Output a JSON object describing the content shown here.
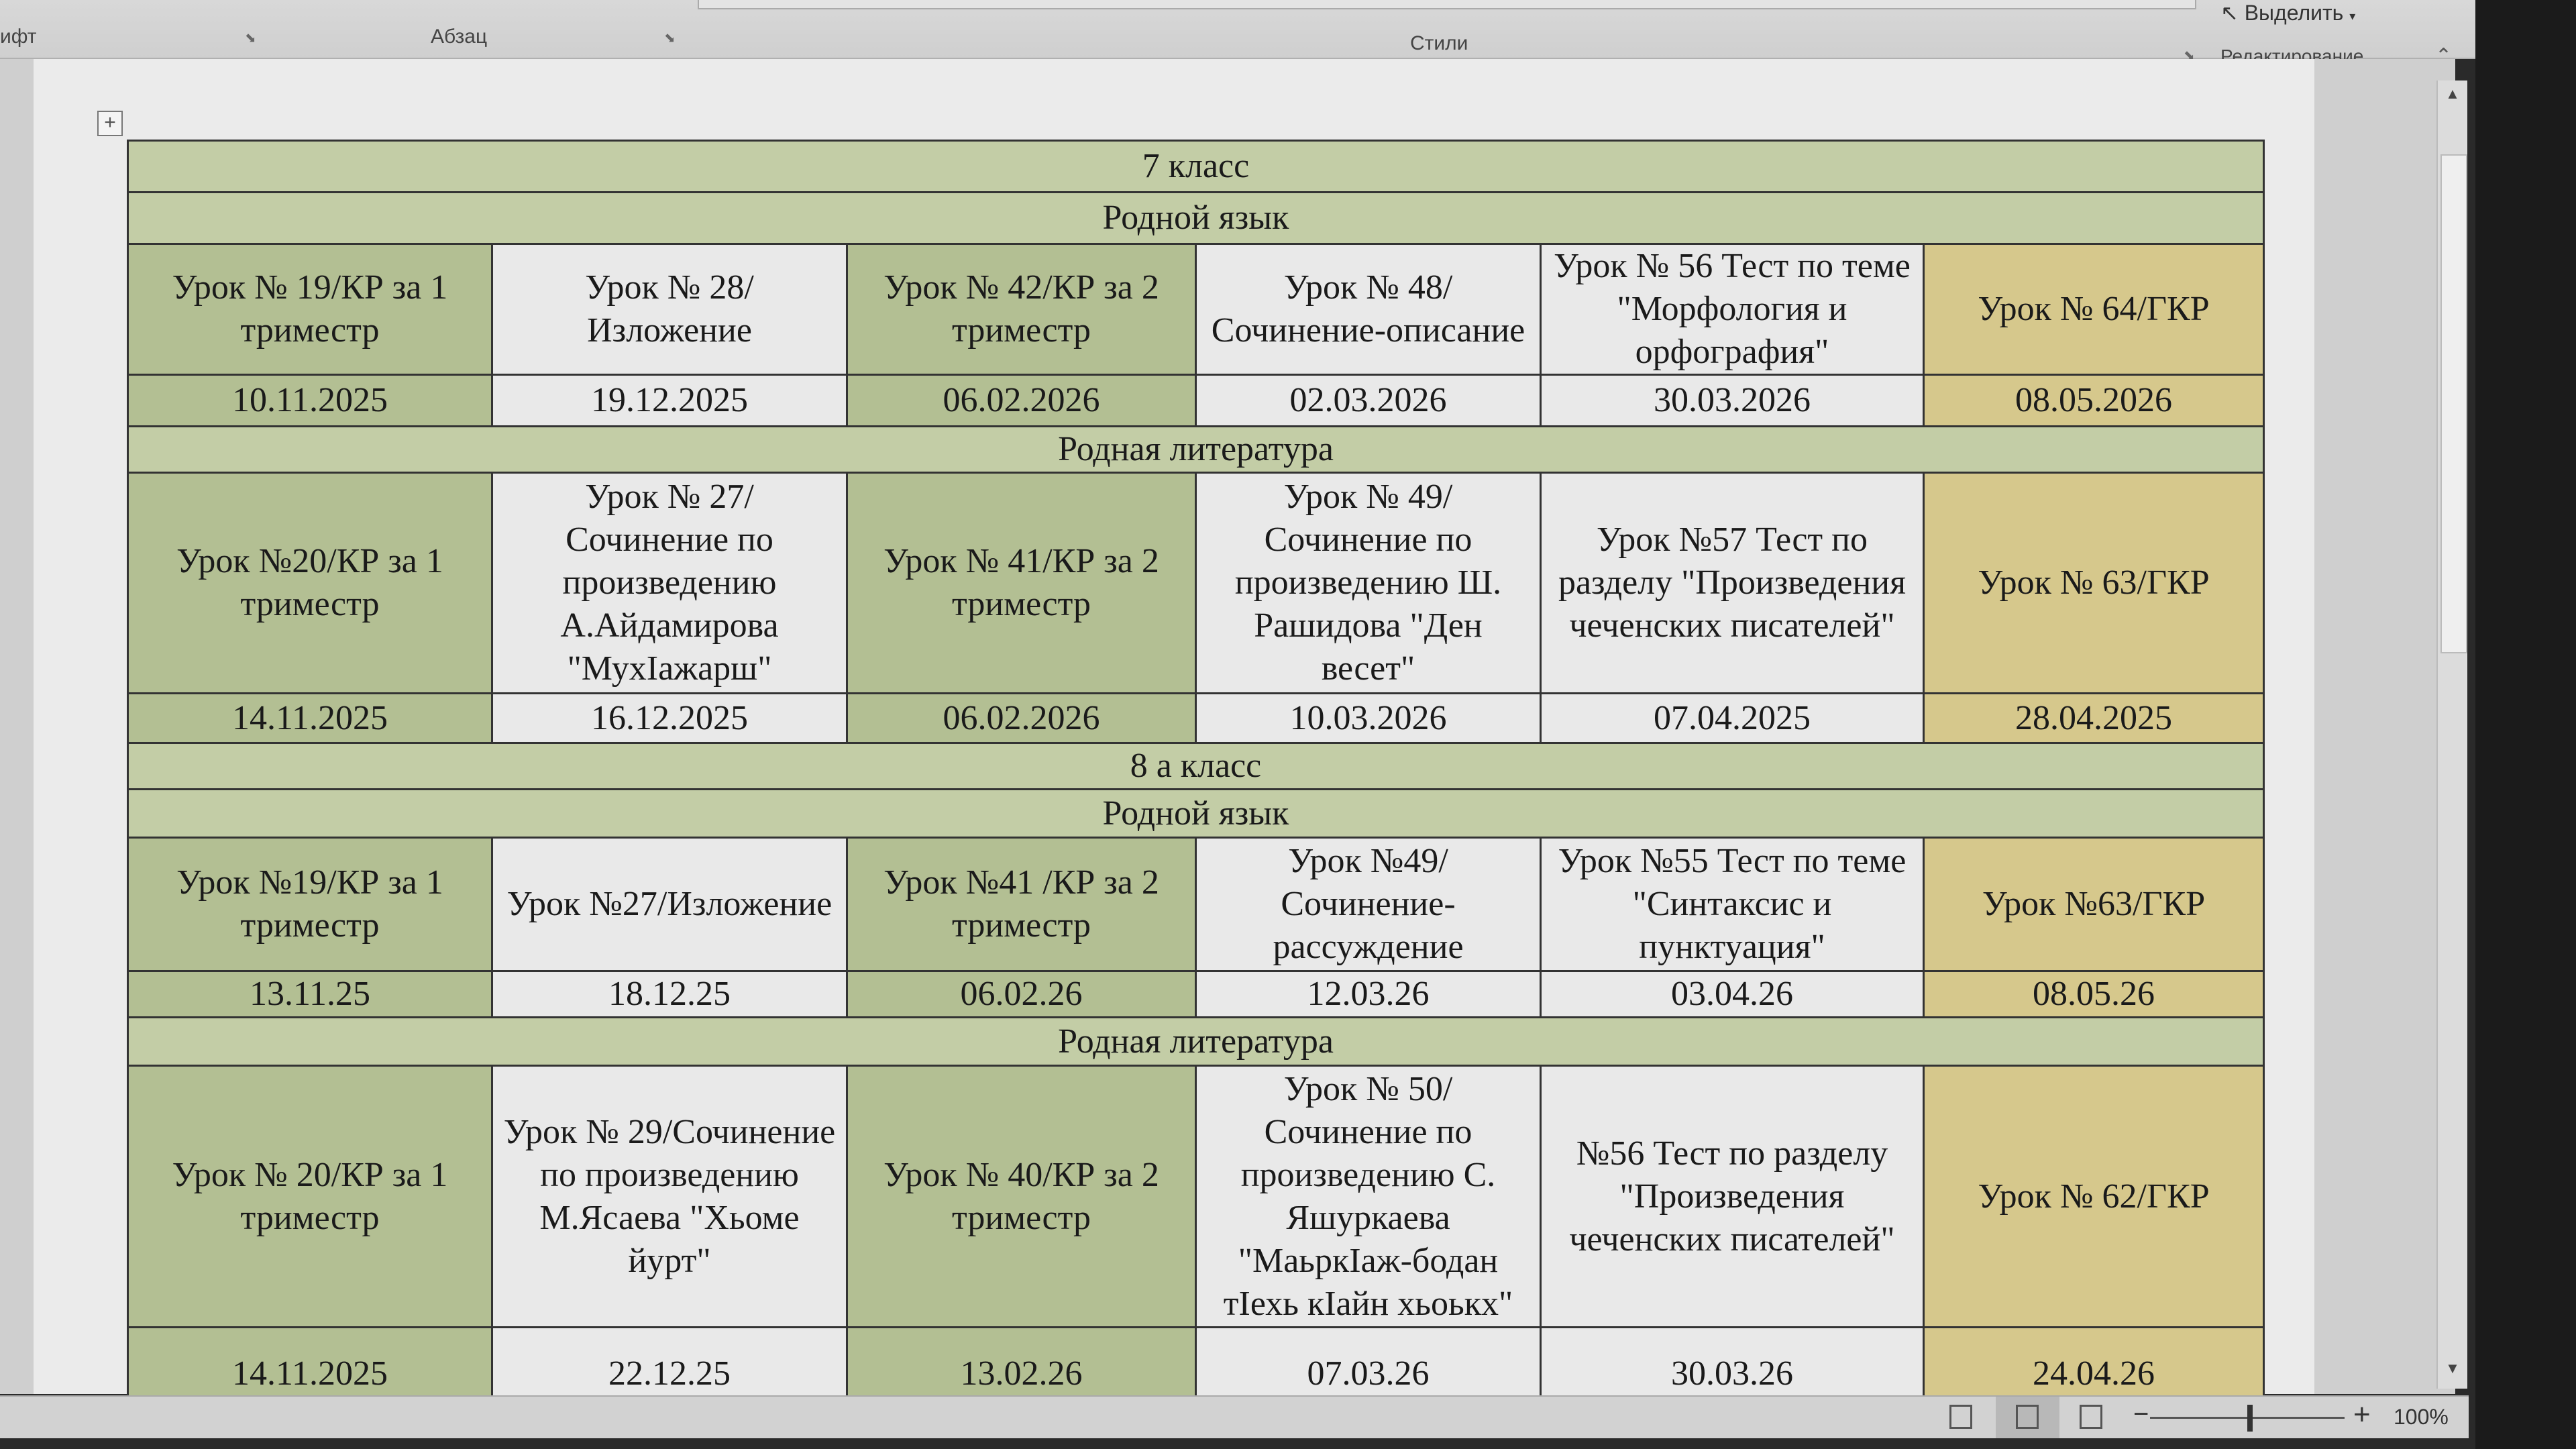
{
  "ribbon": {
    "groups": {
      "font": "ифт",
      "paragraph": "Абзац",
      "styles": "Стили",
      "editing": "Редактирование"
    },
    "select_button": "Выделить",
    "select_icon": "cursor-arrow-icon"
  },
  "colors": {
    "header_green": "#c3cda6",
    "olive": "#b3bf93",
    "light": "#e9e9e9",
    "tan": "#d6c88c"
  },
  "sections": [
    {
      "class": "7 класс",
      "subjects": [
        {
          "name": "Родной язык",
          "lessons": [
            "Урок № 19/КР за 1 триместр",
            "Урок № 28/ Изложение",
            "Урок № 42/КР за 2 триместр",
            "Урок № 48/ Сочинение-описание",
            "Урок № 56 Тест по теме \"Морфология и орфография\"",
            "Урок № 64/ГКР"
          ],
          "dates": [
            "10.11.2025",
            "19.12.2025",
            "06.02.2026",
            "02.03.2026",
            "30.03.2026",
            "08.05.2026"
          ]
        },
        {
          "name": "Родная литература",
          "lessons": [
            "Урок №20/КР за 1 триместр",
            "Урок № 27/ Сочинение по произведению А.Айдамирова \"МухIажарш\"",
            "Урок № 41/КР за 2 триместр",
            "Урок № 49/Сочинение по произведению Ш. Рашидова  \"Ден весет\"",
            "Урок №57 Тест по разделу \"Произведения чеченских писателей\"",
            "Урок № 63/ГКР"
          ],
          "dates": [
            "14.11.2025",
            "16.12.2025",
            "06.02.2026",
            "10.03.2026",
            "07.04.2025",
            "28.04.2025"
          ]
        }
      ]
    },
    {
      "class": "8 а класс",
      "subjects": [
        {
          "name": "Родной язык",
          "lessons": [
            "Урок №19/КР за 1 триместр",
            "Урок №27/Изложение",
            "Урок №41 /КР за 2 триместр",
            "Урок №49/Сочинение-рассуждение",
            "Урок №55 Тест  по теме \"Синтаксис и пунктуация\"",
            "Урок №63/ГКР"
          ],
          "dates": [
            "13.11.25",
            "18.12.25",
            "06.02.26",
            "12.03.26",
            "03.04.26",
            "08.05.26"
          ]
        },
        {
          "name": "Родная литература",
          "lessons": [
            "Урок № 20/КР за 1 триместр",
            "Урок № 29/Сочинение по произведению М.Ясаева  \"Хьоме йурт\"",
            "Урок № 40/КР за 2 триместр",
            "Урок № 50/ Сочинение по произведению С. Яшуркаева \"МаьркIаж-бодан тIехь кIайн хьоькх\"",
            "№56 Тест  по разделу \"Произведения чеченских писателей\"",
            "Урок № 62/ГКР"
          ],
          "dates": [
            "14.11.2025",
            "22.12.25",
            "13.02.26",
            "07.03.26",
            "30.03.26",
            "24.04.26"
          ]
        }
      ]
    }
  ],
  "status_bar": {
    "zoom_level": "100%",
    "zoom_out": "−",
    "zoom_in": "+",
    "view_icons": [
      "read-mode-icon",
      "print-layout-icon",
      "web-layout-icon"
    ]
  }
}
